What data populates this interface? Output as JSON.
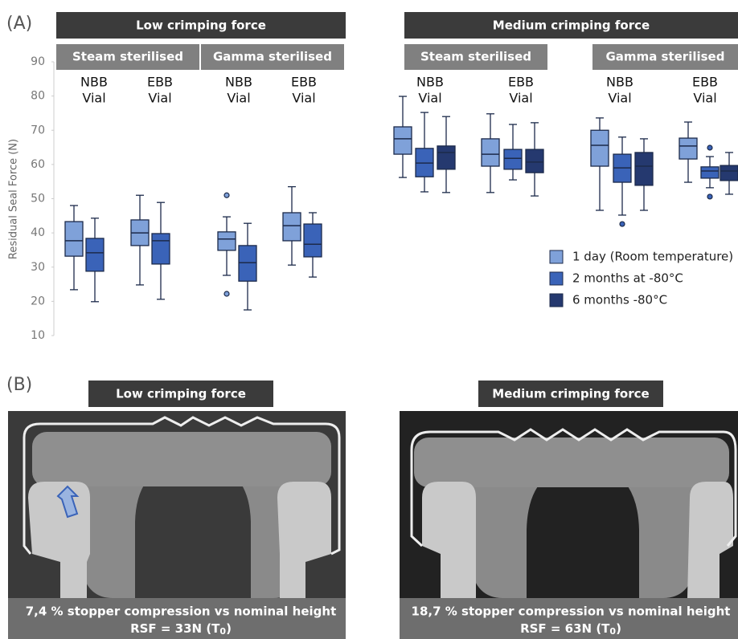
{
  "chart_data": {
    "type": "box",
    "panel_label": "(A)",
    "ylabel": "Residual Seal Force (N)",
    "ylim": [
      10,
      90
    ],
    "yticks": [
      10,
      20,
      30,
      40,
      50,
      60,
      70,
      80,
      90
    ],
    "series": [
      {
        "name": "1 day (Room temperature)",
        "color": "#7fa1d9"
      },
      {
        "name": "2 months at -80°C",
        "color": "#3a63b8"
      },
      {
        "name": "6 months -80°C",
        "color": "#25396f"
      }
    ],
    "headers": [
      {
        "title": "Low crimping force",
        "subs": [
          "Steam sterilised",
          "Gamma sterilised"
        ]
      },
      {
        "title": "Medium crimping force",
        "subs": [
          "Steam sterilised",
          "Gamma sterilised"
        ]
      }
    ],
    "groups": [
      {
        "label": [
          "NBB",
          "Vial"
        ],
        "boxes": [
          {
            "min": 23.4,
            "q1": 33.2,
            "median": 37.7,
            "q3": 43.3,
            "max": 48
          },
          {
            "min": 19.9,
            "q1": 28.8,
            "median": 34.2,
            "q3": 38.4,
            "max": 44.3
          }
        ]
      },
      {
        "label": [
          "EBB",
          "Vial"
        ],
        "boxes": [
          {
            "min": 24.8,
            "q1": 36.3,
            "median": 40,
            "q3": 43.8,
            "max": 51
          },
          {
            "min": 20.6,
            "q1": 30.9,
            "median": 37.7,
            "q3": 39.8,
            "max": 48.9
          }
        ]
      },
      {
        "label": [
          "NBB",
          "Vial"
        ],
        "boxes": [
          {
            "min": 27.6,
            "q1": 34.9,
            "median": 38.2,
            "q3": 40.3,
            "max": 44.7,
            "outliers": [
              51,
              22.2
            ]
          },
          {
            "min": 17.5,
            "q1": 25.9,
            "median": 31.3,
            "q3": 36.3,
            "max": 42.8
          }
        ]
      },
      {
        "label": [
          "EBB",
          "Vial"
        ],
        "boxes": [
          {
            "min": 30.6,
            "q1": 37.7,
            "median": 42.1,
            "q3": 45.9,
            "max": 53.5
          },
          {
            "min": 27.1,
            "q1": 33,
            "median": 36.7,
            "q3": 42.6,
            "max": 45.9
          }
        ]
      },
      {
        "label": [
          "NBB",
          "Vial"
        ],
        "boxes": [
          {
            "min": 56.2,
            "q1": 63,
            "median": 67.5,
            "q3": 71,
            "max": 79.9
          },
          {
            "min": 52,
            "q1": 56.4,
            "median": 60.4,
            "q3": 64.7,
            "max": 75.2
          },
          {
            "min": 51.8,
            "q1": 58.6,
            "median": 63.5,
            "q3": 65.4,
            "max": 74
          }
        ]
      },
      {
        "label": [
          "EBB",
          "Vial"
        ],
        "boxes": [
          {
            "min": 51.8,
            "q1": 59.5,
            "median": 63,
            "q3": 67.5,
            "max": 74.8
          },
          {
            "min": 55.5,
            "q1": 58.6,
            "median": 61.8,
            "q3": 64.4,
            "max": 71.7
          },
          {
            "min": 50.8,
            "q1": 57.6,
            "median": 60.7,
            "q3": 64.4,
            "max": 72.2
          }
        ]
      },
      {
        "label": [
          "NBB",
          "Vial"
        ],
        "boxes": [
          {
            "min": 46.6,
            "q1": 59.5,
            "median": 65.6,
            "q3": 70,
            "max": 73.6
          },
          {
            "min": 45.2,
            "q1": 54.8,
            "median": 59,
            "q3": 63,
            "max": 68,
            "outliers": [
              42.6
            ]
          },
          {
            "min": 46.6,
            "q1": 53.9,
            "median": 59.5,
            "q3": 63.5,
            "max": 67.5
          }
        ]
      },
      {
        "label": [
          "EBB",
          "Vial"
        ],
        "boxes": [
          {
            "min": 54.8,
            "q1": 61.6,
            "median": 65.4,
            "q3": 67.7,
            "max": 72.4
          },
          {
            "min": 53.2,
            "q1": 56,
            "median": 58.1,
            "q3": 59.3,
            "max": 62.3,
            "outliers": [
              64.9,
              50.6
            ]
          },
          {
            "min": 51.3,
            "q1": 55.3,
            "median": 58.1,
            "q3": 59.7,
            "max": 63.5
          }
        ]
      }
    ]
  },
  "panel_b": {
    "label": "(B)",
    "images": [
      {
        "title": "Low crimping force",
        "caption": "7,4 % stopper compression vs nominal height",
        "rsf": "RSF = 33N (T",
        "sub": "0",
        "close": ")"
      },
      {
        "title": "Medium crimping force",
        "caption": "18,7 % stopper compression vs nominal height",
        "rsf": "RSF = 63N (T",
        "sub": "0",
        "close": ")"
      }
    ]
  }
}
